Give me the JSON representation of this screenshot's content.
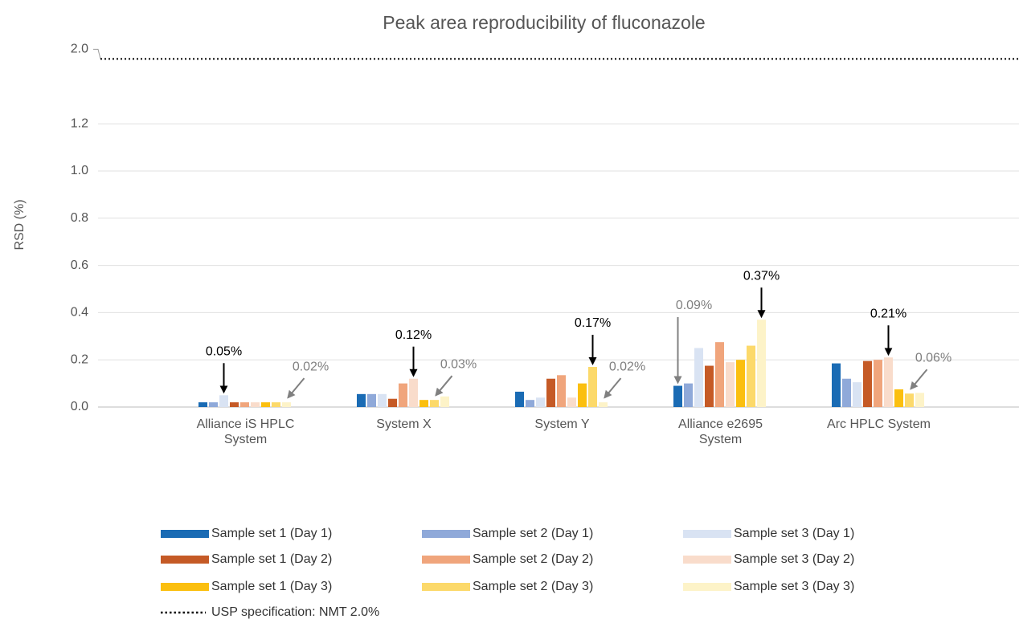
{
  "chart_data": {
    "type": "bar",
    "title": "Peak area reproducibility of fluconazole",
    "y_label": "RSD (%)",
    "categories": [
      "Alliance iS HPLC System",
      "System X",
      "System Y",
      "Alliance e2695 System",
      "Arc HPLC System"
    ],
    "ylim": [
      0,
      2.0
    ],
    "yticks": [
      {
        "value": 0,
        "label": "0.0"
      },
      0.2,
      0.4,
      0.6,
      0.8,
      {
        "value": 1,
        "label": "1.0"
      },
      1.2,
      {
        "value": 2,
        "label": "2.0"
      }
    ],
    "axis_break": [
      1.3,
      1.9
    ],
    "grid": true,
    "legend": "bottom",
    "series": [
      {
        "name": "Sample set 1 (Day 1)",
        "color": "#1a6bb4",
        "values": [
          0.02,
          0.055,
          0.065,
          0.09,
          0.185
        ],
        "value_labels": [
          null,
          null,
          null,
          "0.09%",
          null
        ]
      },
      {
        "name": "Sample set 2 (Day 1)",
        "color": "#8fa9d9",
        "values": [
          0.02,
          0.055,
          0.03,
          0.1,
          0.12
        ]
      },
      {
        "name": "Sample set 3 (Day 1)",
        "color": "#d9e3f3",
        "values": [
          0.05,
          0.055,
          0.04,
          0.25,
          0.105
        ],
        "value_labels": [
          "0.05%",
          null,
          null,
          null,
          null
        ]
      },
      {
        "name": "Sample set 1 (Day 2)",
        "color": "#c55a26",
        "values": [
          0.02,
          0.035,
          0.12,
          0.175,
          0.195
        ]
      },
      {
        "name": "Sample set 2 (Day 2)",
        "color": "#f0a57c",
        "values": [
          0.02,
          0.1,
          0.135,
          0.275,
          0.2
        ]
      },
      {
        "name": "Sample set 3 (Day 2)",
        "color": "#f9dccb",
        "values": [
          0.02,
          0.12,
          0.04,
          0.19,
          0.21
        ],
        "value_labels": [
          null,
          "0.12%",
          null,
          null,
          "0.21%"
        ]
      },
      {
        "name": "Sample set 1 (Day 3)",
        "color": "#fbbf0f",
        "values": [
          0.02,
          0.03,
          0.1,
          0.2,
          0.075
        ]
      },
      {
        "name": "Sample set 2 (Day 3)",
        "color": "#fcd96a",
        "values": [
          0.02,
          0.03,
          0.17,
          0.26,
          0.057
        ],
        "value_labels": [
          null,
          "0.03%",
          "0.17%",
          null,
          "0.06%"
        ]
      },
      {
        "name": "Sample set 3 (Day 3)",
        "color": "#fdf3c8",
        "values": [
          0.02,
          0.045,
          0.02,
          0.37,
          0.06
        ],
        "value_labels": [
          "0.02%",
          null,
          "0.02%",
          "0.37%",
          null
        ]
      }
    ],
    "reference_line": {
      "name": "USP specification: NMT 2.0%",
      "value": 2.0,
      "color": "#000"
    }
  }
}
